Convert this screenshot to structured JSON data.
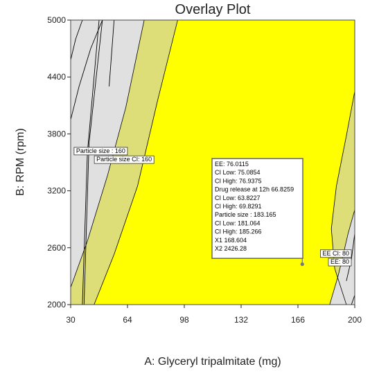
{
  "chart_data": {
    "type": "contour",
    "title": "Overlay Plot",
    "xlabel": "A: Glyceryl tripalmitate (mg)",
    "ylabel": "B: RPM (rpm)",
    "xlim": [
      30,
      200
    ],
    "ylim": [
      2000,
      5000
    ],
    "xticks": [
      "30",
      "64",
      "98",
      "132",
      "166",
      "200"
    ],
    "yticks": [
      "2000",
      "2600",
      "3200",
      "3800",
      "4400",
      "5000"
    ],
    "colors": {
      "feasible": "#ffff00",
      "ci_band": "#dede78",
      "excluded": "#e0e0e0",
      "contour_line": "#000000"
    },
    "regions": {
      "particle_size_limit_left": [
        [
          30,
          2180
        ],
        [
          40,
          2670
        ],
        [
          52,
          3360
        ],
        [
          63,
          4080
        ],
        [
          74,
          5000
        ]
      ],
      "particle_size_ci_left": [
        [
          44,
          2000
        ],
        [
          56,
          2530
        ],
        [
          70,
          3250
        ],
        [
          82,
          4150
        ],
        [
          94,
          5000
        ]
      ],
      "ee_ci_right": [
        [
          200,
          4250
        ],
        [
          195,
          3780
        ],
        [
          189,
          3250
        ],
        [
          186,
          2800
        ],
        [
          188,
          2380
        ],
        [
          195,
          2000
        ]
      ],
      "ee_limit_right": [
        [
          200,
          3000
        ],
        [
          196,
          2750
        ],
        [
          193,
          2520
        ],
        [
          190,
          2300
        ],
        [
          185,
          2000
        ]
      ],
      "extra_contours": [
        [
          [
            30,
            3950
          ],
          [
            35,
            4300
          ],
          [
            42,
            4700
          ],
          [
            49,
            5000
          ]
        ],
        [
          [
            30,
            4580
          ],
          [
            33,
            4800
          ],
          [
            37,
            5000
          ]
        ],
        [
          [
            37,
            2000
          ],
          [
            40,
            3600
          ],
          [
            47,
            5000
          ]
        ],
        [
          [
            38,
            2000
          ],
          [
            41,
            3700
          ],
          [
            49,
            5000
          ]
        ],
        [
          [
            53,
            4300
          ],
          [
            56,
            5000
          ]
        ],
        [
          [
            195,
            2250
          ],
          [
            198,
            2480
          ],
          [
            200,
            2750
          ]
        ],
        [
          [
            198,
            2000
          ],
          [
            200,
            2100
          ]
        ]
      ]
    },
    "annotations": [
      {
        "text": "Particle size : 160",
        "x": 48,
        "y": 3600
      },
      {
        "text": "Particle size  CI:  160",
        "x": 62,
        "y": 3510
      },
      {
        "text": "EE CI:  80",
        "x": 193,
        "y": 2520
      },
      {
        "text": "EE: 80",
        "x": 197,
        "y": 2430
      }
    ],
    "flag_point": {
      "x": 168.604,
      "y": 2426.28
    },
    "flag_box": {
      "lines": [
        "EE:  76.0115",
        "  CI Low:   75.0854",
        "  CI High:   76.9375",
        "Drug release at 12h  66.8259",
        "  CI Low:   63.8227",
        "  CI High:   69.8291",
        "Particle size :   183.165",
        "  CI Low:   181.064",
        "  CI High:   185.266",
        "X1  168.604",
        "X2  2426.28"
      ]
    }
  }
}
